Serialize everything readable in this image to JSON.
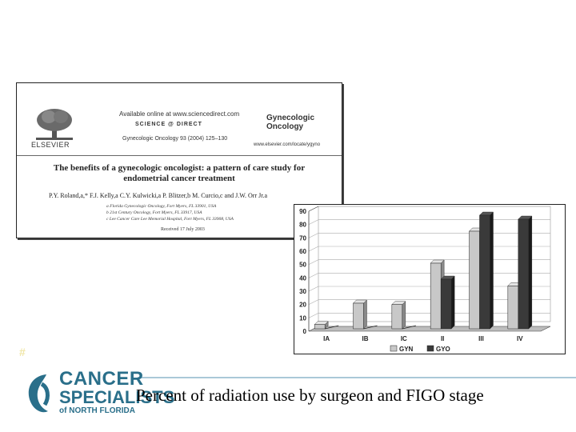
{
  "paper": {
    "publisher": "ELSEVIER",
    "online": "Available online at www.sciencedirect.com",
    "sciencedirect": "SCIENCE @ DIRECT",
    "citation": "Gynecologic Oncology 93 (2004) 125–130",
    "journal": "Gynecologic Oncology",
    "journal_url": "www.elsevier.com/locate/ygyno",
    "title_line1": "The benefits of a gynecologic oncologist: a pattern of care study for",
    "title_line2": "endometrial cancer treatment",
    "authors": "P.Y. Roland,a,* F.J. Kelly,a C.Y. Kulwicki,a P. Blitzer,b M. Curcio,c and J.W. Orr Jr.a",
    "affil1": "a Florida Gynecologic Oncology, Fort Myers, FL 33901, USA",
    "affil2": "b 21st Century Oncology, Fort Myers, FL 33917, USA",
    "affil3": "c Lee Cancer Care Lee Memorial Hospital, Fort Myers, FL 33908, USA",
    "received": "Received 17 July 2003"
  },
  "chart_data": {
    "type": "bar",
    "categories": [
      "IA",
      "IB",
      "IC",
      "II",
      "III",
      "IV"
    ],
    "series": [
      {
        "name": "GYN",
        "values": [
          5,
          21,
          20,
          51,
          75,
          34
        ],
        "color": "#c8c8c8"
      },
      {
        "name": "GYO",
        "values": [
          0,
          0,
          0,
          39,
          87,
          84
        ],
        "color": "#3a3a3a"
      }
    ],
    "ylim": [
      0,
      90
    ],
    "yticks": [
      "0",
      "10",
      "20",
      "30",
      "40",
      "50",
      "60",
      "70",
      "80",
      "90"
    ],
    "grid": true,
    "legend": "bottom"
  },
  "pager": "#",
  "logo": {
    "line1": "CANCER",
    "line2": "SPECIALISTS",
    "line3": "of NORTH FLORIDA"
  },
  "caption": "Percent of radiation  use by surgeon and FIGO stage"
}
